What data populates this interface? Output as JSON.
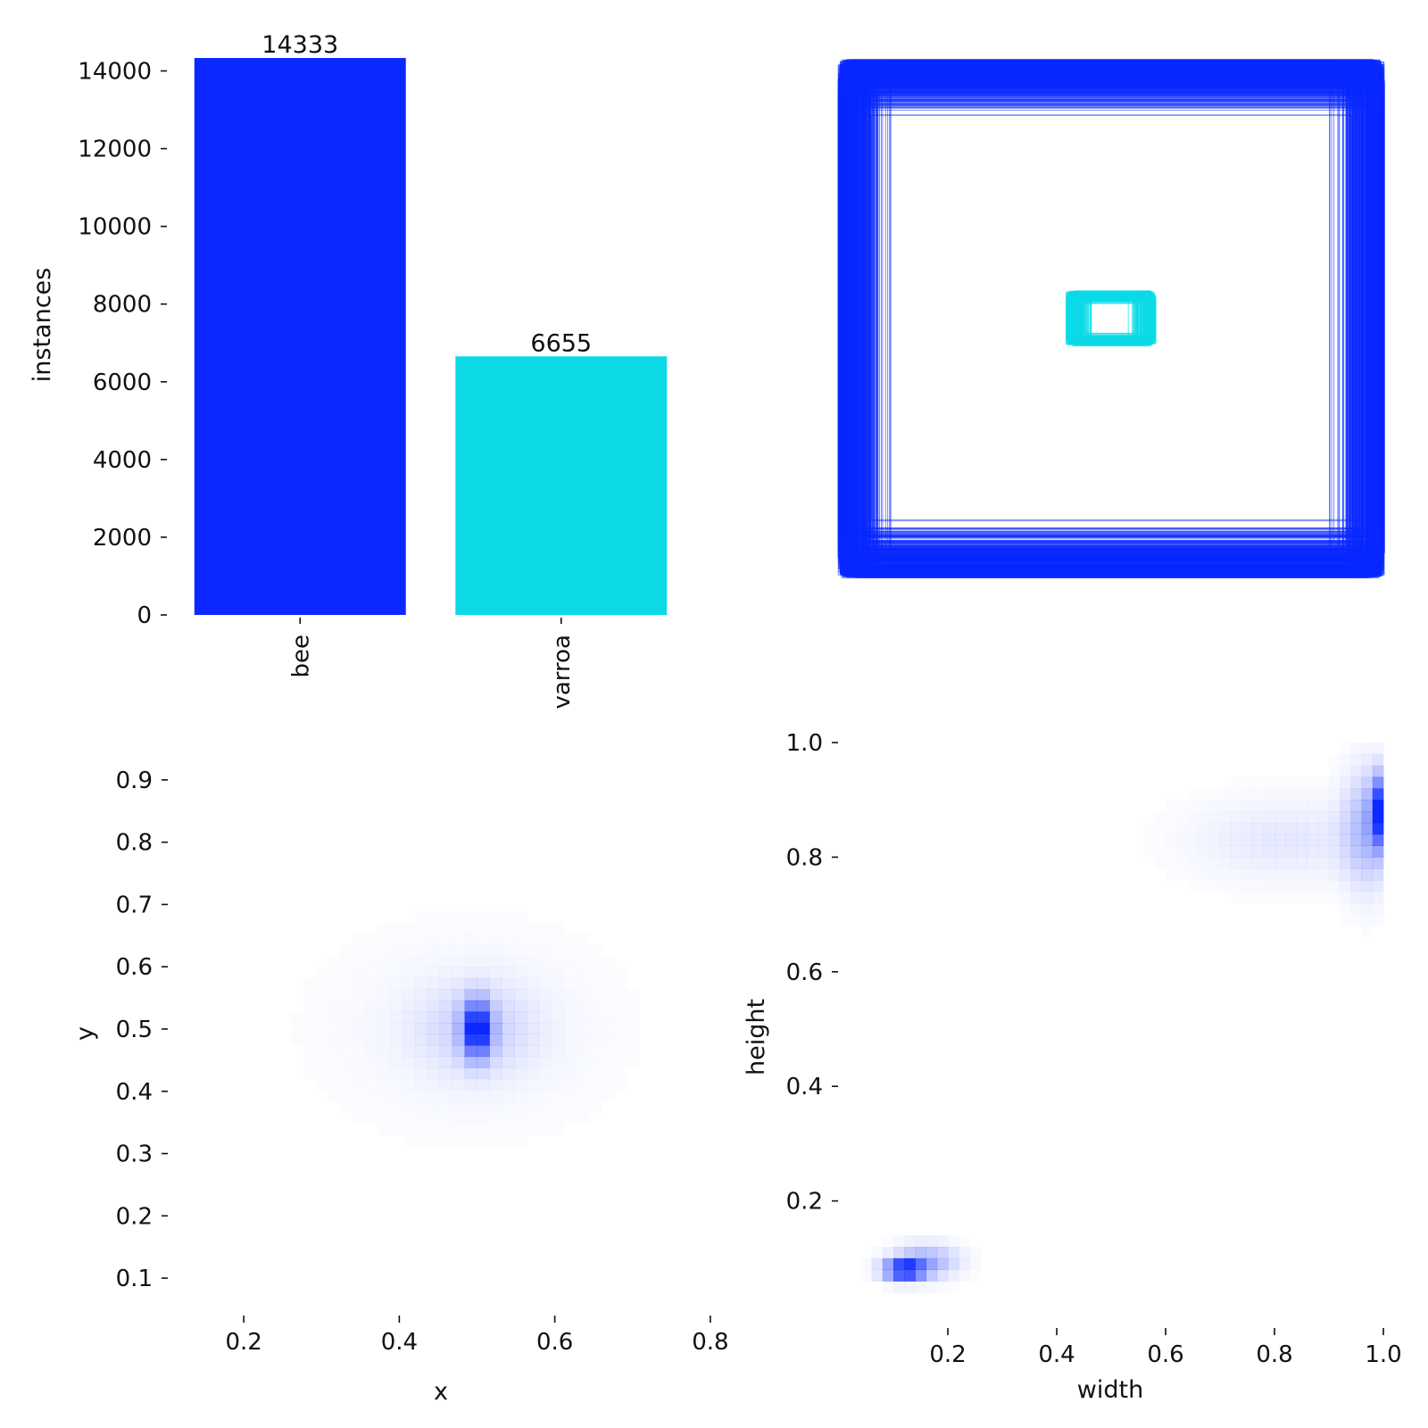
{
  "colors": {
    "bee": "#0a28ff",
    "varroa": "#0cdae7",
    "text": "#111111"
  },
  "chart_data": [
    {
      "id": "instances-bar",
      "type": "bar",
      "categories": [
        "bee",
        "varroa"
      ],
      "values": [
        14333,
        6655
      ],
      "data_labels": [
        "14333",
        "6655"
      ],
      "ylabel": "instances",
      "xlabel": "",
      "ylim": [
        0,
        14333
      ],
      "yticks": [
        0,
        2000,
        4000,
        6000,
        8000,
        10000,
        12000,
        14000
      ],
      "ytick_labels": [
        "0",
        "2000",
        "4000",
        "6000",
        "8000",
        "10000",
        "12000",
        "14000"
      ],
      "grid": false
    },
    {
      "id": "box-overlay",
      "type": "scatter",
      "description_kind": "overlaid bounding boxes centered in a unit frame",
      "series": [
        {
          "class": "bee",
          "width_range": [
            0.8,
            1.0
          ],
          "height_range": [
            0.75,
            0.99
          ]
        },
        {
          "class": "varroa",
          "width_range": [
            0.05,
            0.16
          ],
          "height_range": [
            0.05,
            0.1
          ]
        }
      ],
      "axes_visible": false
    },
    {
      "id": "xy-heatmap",
      "type": "heatmap",
      "xlabel": "x",
      "ylabel": "y",
      "xlim": [
        0.1,
        0.9
      ],
      "ylim": [
        0.06,
        0.96
      ],
      "xticks": [
        0.2,
        0.4,
        0.6,
        0.8
      ],
      "xtick_labels": [
        "0.2",
        "0.4",
        "0.6",
        "0.8"
      ],
      "yticks": [
        0.1,
        0.2,
        0.3,
        0.4,
        0.5,
        0.6,
        0.7,
        0.8,
        0.9
      ],
      "ytick_labels": [
        "0.1",
        "0.2",
        "0.3",
        "0.4",
        "0.5",
        "0.6",
        "0.7",
        "0.8",
        "0.9"
      ],
      "clusters": [
        {
          "x": 0.5,
          "y": 0.5,
          "sx": 0.012,
          "sy": 0.03,
          "peak": 1.0
        },
        {
          "x": 0.5,
          "y": 0.5,
          "sx": 0.05,
          "sy": 0.05,
          "peak": 0.18
        },
        {
          "x": 0.49,
          "y": 0.5,
          "sx": 0.13,
          "sy": 0.11,
          "peak": 0.045
        }
      ]
    },
    {
      "id": "wh-heatmap",
      "type": "heatmap",
      "xlabel": "width",
      "ylabel": "height",
      "xlim": [
        0,
        1.0
      ],
      "ylim": [
        0.0,
        1.0
      ],
      "xticks": [
        0.2,
        0.4,
        0.6,
        0.8,
        1.0
      ],
      "xtick_labels": [
        "0.2",
        "0.4",
        "0.6",
        "0.8",
        "1.0"
      ],
      "yticks": [
        0.2,
        0.4,
        0.6,
        0.8,
        1.0
      ],
      "ytick_labels": [
        "0.2",
        "0.4",
        "0.6",
        "0.8",
        "1.0"
      ],
      "clusters": [
        {
          "x": 0.12,
          "y": 0.08,
          "sx": 0.025,
          "sy": 0.012,
          "peak": 1.0
        },
        {
          "x": 0.16,
          "y": 0.095,
          "sx": 0.04,
          "sy": 0.02,
          "peak": 0.35
        },
        {
          "x": 0.99,
          "y": 0.88,
          "sx": 0.01,
          "sy": 0.04,
          "peak": 0.85
        },
        {
          "x": 0.97,
          "y": 0.85,
          "sx": 0.03,
          "sy": 0.07,
          "peak": 0.3
        },
        {
          "x": 0.82,
          "y": 0.83,
          "sx": 0.12,
          "sy": 0.05,
          "peak": 0.1
        }
      ]
    }
  ]
}
